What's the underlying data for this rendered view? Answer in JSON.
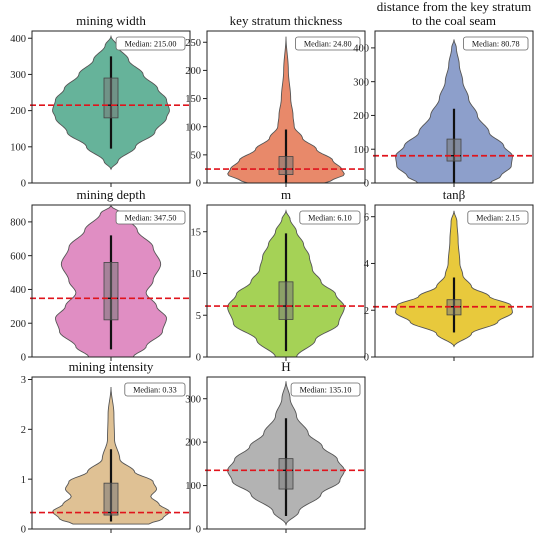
{
  "chart_data": [
    {
      "type": "violin",
      "title": "mining width",
      "ylim": [
        0,
        420
      ],
      "yticks": [
        0,
        100,
        200,
        300,
        400
      ],
      "color": "#66b39a",
      "median": 215.0,
      "median_label": "Median: 215.00",
      "q1": 180,
      "q3": 290,
      "whisker_low": 95,
      "whisker_high": 350,
      "profile": [
        [
          38,
          0
        ],
        [
          60,
          0.12
        ],
        [
          100,
          0.42
        ],
        [
          140,
          0.75
        ],
        [
          180,
          0.95
        ],
        [
          200,
          1.0
        ],
        [
          230,
          0.95
        ],
        [
          260,
          0.8
        ],
        [
          300,
          0.55
        ],
        [
          340,
          0.3
        ],
        [
          380,
          0.1
        ],
        [
          405,
          0
        ]
      ]
    },
    {
      "type": "violin",
      "title": "key stratum thickness",
      "ylim": [
        0,
        270
      ],
      "yticks": [
        0,
        50,
        100,
        150,
        200,
        250
      ],
      "color": "#e8896a",
      "median": 24.8,
      "median_label": "Median: 24.80",
      "q1": 15,
      "q3": 47,
      "whisker_low": 0,
      "whisker_high": 95,
      "profile": [
        [
          0,
          0.65
        ],
        [
          5,
          0.8
        ],
        [
          15,
          1.0
        ],
        [
          25,
          0.95
        ],
        [
          40,
          0.8
        ],
        [
          60,
          0.52
        ],
        [
          80,
          0.28
        ],
        [
          100,
          0.14
        ],
        [
          120,
          0.12
        ],
        [
          150,
          0.08
        ],
        [
          200,
          0.04
        ],
        [
          260,
          0
        ]
      ]
    },
    {
      "type": "violin",
      "title": "distance from the key stratum to the coal seam",
      "ylim": [
        0,
        450
      ],
      "yticks": [
        0,
        100,
        200,
        300,
        400
      ],
      "color": "#8d9fcb",
      "median": 80.78,
      "median_label": "Median: 80.78",
      "q1": 65,
      "q3": 130,
      "whisker_low": 0,
      "whisker_high": 220,
      "profile": [
        [
          0,
          0.62
        ],
        [
          20,
          0.8
        ],
        [
          50,
          0.98
        ],
        [
          80,
          1.0
        ],
        [
          110,
          0.85
        ],
        [
          150,
          0.6
        ],
        [
          200,
          0.4
        ],
        [
          250,
          0.25
        ],
        [
          300,
          0.15
        ],
        [
          350,
          0.09
        ],
        [
          400,
          0.04
        ],
        [
          425,
          0
        ]
      ]
    },
    {
      "type": "violin",
      "title": "mining depth",
      "ylim": [
        0,
        900
      ],
      "yticks": [
        0,
        200,
        400,
        600,
        800
      ],
      "color": "#e08ec3",
      "median": 347.5,
      "median_label": "Median: 347.50",
      "q1": 220,
      "q3": 560,
      "whisker_low": 45,
      "whisker_high": 720,
      "profile": [
        [
          0,
          0.38
        ],
        [
          60,
          0.6
        ],
        [
          150,
          0.88
        ],
        [
          230,
          0.95
        ],
        [
          300,
          0.78
        ],
        [
          380,
          0.6
        ],
        [
          450,
          0.72
        ],
        [
          550,
          0.85
        ],
        [
          650,
          0.72
        ],
        [
          750,
          0.45
        ],
        [
          850,
          0.18
        ],
        [
          895,
          0
        ]
      ]
    },
    {
      "type": "violin",
      "title": "m",
      "ylim": [
        0,
        18.2
      ],
      "yticks": [
        0,
        5,
        10,
        15
      ],
      "color": "#a5d256",
      "median": 6.1,
      "median_label": "Median: 6.10",
      "q1": 4.5,
      "q3": 9.0,
      "whisker_low": 0.7,
      "whisker_high": 14.8,
      "profile": [
        [
          0,
          0.18
        ],
        [
          2,
          0.5
        ],
        [
          4,
          0.9
        ],
        [
          6,
          1.0
        ],
        [
          7.5,
          0.85
        ],
        [
          9,
          0.6
        ],
        [
          10.5,
          0.45
        ],
        [
          12,
          0.4
        ],
        [
          13.5,
          0.3
        ],
        [
          15,
          0.18
        ],
        [
          16.5,
          0.07
        ],
        [
          17.5,
          0
        ]
      ]
    },
    {
      "type": "violin",
      "title": "tanβ",
      "ylim": [
        0,
        6.5
      ],
      "yticks": [
        0,
        2,
        4,
        6
      ],
      "color": "#e8c93c",
      "median": 2.15,
      "median_label": "Median: 2.15",
      "q1": 1.8,
      "q3": 2.45,
      "whisker_low": 1.05,
      "whisker_high": 3.4,
      "profile": [
        [
          0.45,
          0
        ],
        [
          1.0,
          0.3
        ],
        [
          1.5,
          0.75
        ],
        [
          1.9,
          1.0
        ],
        [
          2.2,
          0.98
        ],
        [
          2.6,
          0.6
        ],
        [
          3.0,
          0.3
        ],
        [
          3.5,
          0.15
        ],
        [
          4.0,
          0.1
        ],
        [
          5.0,
          0.07
        ],
        [
          5.8,
          0.05
        ],
        [
          6.25,
          0
        ]
      ]
    },
    {
      "type": "violin",
      "title": "mining intensity",
      "ylim": [
        0,
        3.05
      ],
      "yticks": [
        0,
        1,
        2,
        3
      ],
      "color": "#dfc194",
      "median": 0.33,
      "median_label": "Median: 0.33",
      "q1": 0.28,
      "q3": 0.92,
      "whisker_low": 0.15,
      "whisker_high": 1.6,
      "profile": [
        [
          0.1,
          0.65
        ],
        [
          0.2,
          0.88
        ],
        [
          0.35,
          1.0
        ],
        [
          0.5,
          0.82
        ],
        [
          0.65,
          0.68
        ],
        [
          0.8,
          0.78
        ],
        [
          0.95,
          0.72
        ],
        [
          1.15,
          0.4
        ],
        [
          1.4,
          0.15
        ],
        [
          1.8,
          0.06
        ],
        [
          2.3,
          0.05
        ],
        [
          2.85,
          0
        ]
      ]
    },
    {
      "type": "violin",
      "title": "H",
      "ylim": [
        0,
        350
      ],
      "yticks": [
        0,
        100,
        200,
        300
      ],
      "color": "#b3b3b3",
      "median": 135.1,
      "median_label": "Median: 135.10",
      "q1": 92,
      "q3": 162,
      "whisker_low": 30,
      "whisker_high": 255,
      "profile": [
        [
          10,
          0
        ],
        [
          40,
          0.22
        ],
        [
          80,
          0.6
        ],
        [
          110,
          0.92
        ],
        [
          135,
          1.0
        ],
        [
          160,
          0.88
        ],
        [
          190,
          0.62
        ],
        [
          220,
          0.38
        ],
        [
          260,
          0.18
        ],
        [
          300,
          0.07
        ],
        [
          340,
          0
        ]
      ]
    }
  ]
}
